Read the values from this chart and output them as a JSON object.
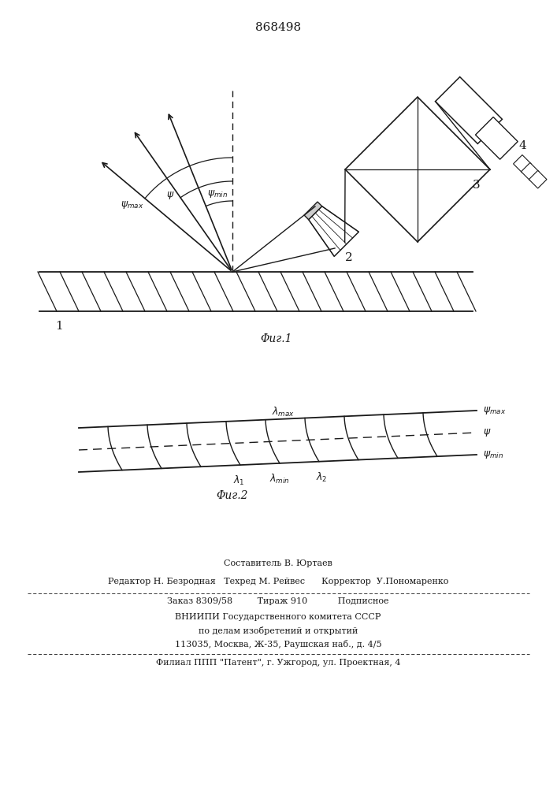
{
  "patent_number": "868498",
  "line_color": "#1a1a1a",
  "fig1_label": "Φиг.1",
  "fig2_label": "Φиг.2",
  "footer": {
    "line1": "Составитель В. Юртаев",
    "line2": "Редактор Н. Безродная   Техред М. Рейвес      Корректор  У.Пономаренко",
    "line3": "Заказ 8309/58         Тираж 910           Подписное",
    "line4": "ВНИИПИ Государственного комитета СССР",
    "line5": "по делам изобретений и открытий",
    "line6": "113035, Москва, Ж-35, Раушская наб., д. 4/5",
    "line7": "Филиал ППП \"Патент\", г. Ужгород, ул. Проектная, 4"
  }
}
